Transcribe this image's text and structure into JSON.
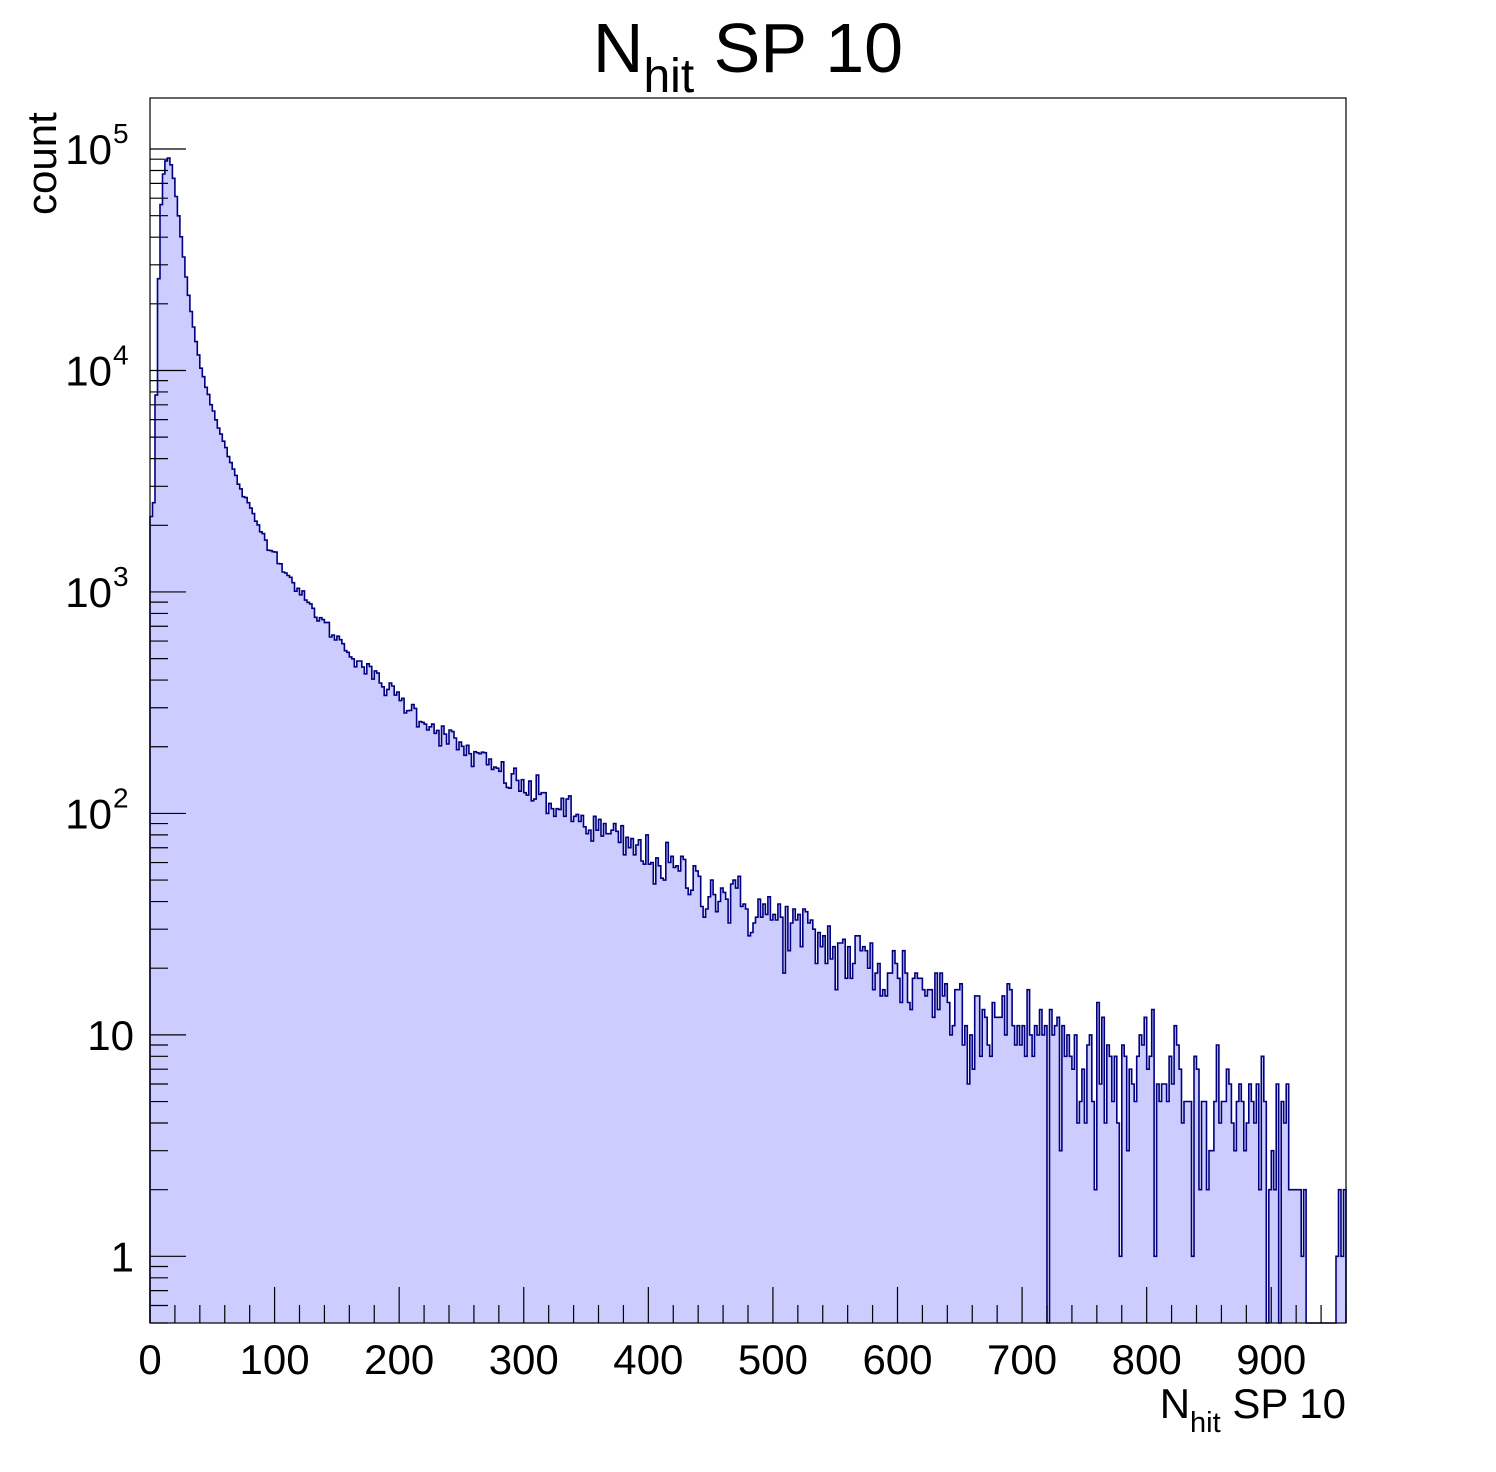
{
  "chart_data": {
    "type": "histogram",
    "title": {
      "main": "N",
      "sub": "hit",
      "rest": " SP 10"
    },
    "xlabel": {
      "main": "N",
      "sub": "hit",
      "rest": " SP 10"
    },
    "ylabel": "count",
    "xlim": [
      0,
      960
    ],
    "ylim": [
      0.5,
      170000
    ],
    "y_scale": "log",
    "bin_width": 2,
    "x_ticks": [
      "0",
      "100",
      "200",
      "300",
      "400",
      "500",
      "600",
      "700",
      "800",
      "900"
    ],
    "x_tick_values": [
      0,
      100,
      200,
      300,
      400,
      500,
      600,
      700,
      800,
      900
    ],
    "y_ticks": [
      {
        "value": 1,
        "base": "1",
        "exp": ""
      },
      {
        "value": 10,
        "base": "10",
        "exp": ""
      },
      {
        "value": 100,
        "base": "10",
        "exp": "2"
      },
      {
        "value": 1000,
        "base": "10",
        "exp": "3"
      },
      {
        "value": 10000,
        "base": "10",
        "exp": "4"
      },
      {
        "value": 100000,
        "base": "10",
        "exp": "5"
      }
    ],
    "fill_color": "#ccccff",
    "line_color": "#000080",
    "series": [
      {
        "x": [
          0,
          2,
          4,
          6,
          8,
          10,
          12,
          14,
          16,
          18,
          20,
          22,
          24,
          26,
          28,
          30,
          32,
          34,
          36,
          38,
          40,
          45,
          50,
          55,
          60,
          65,
          70,
          75,
          80,
          85,
          90,
          95,
          100,
          110,
          120,
          130,
          140,
          150,
          160,
          170,
          180,
          190,
          200,
          210,
          220,
          230,
          240,
          250,
          260,
          270,
          280,
          290,
          300,
          320,
          340,
          360,
          380,
          400,
          420,
          440,
          460,
          480,
          500,
          520,
          540,
          560,
          580,
          600,
          620,
          640,
          660,
          680,
          700,
          720,
          740,
          760,
          780,
          800,
          820,
          840,
          860,
          880,
          900,
          910,
          920,
          930,
          940,
          950,
          958
        ],
        "values": [
          3000,
          1600,
          4000,
          15000,
          45000,
          70000,
          85000,
          92000,
          90000,
          80000,
          68000,
          55000,
          45000,
          36000,
          29000,
          24000,
          20000,
          17000,
          14500,
          12500,
          11000,
          8500,
          6800,
          5600,
          4600,
          3800,
          3200,
          2750,
          2400,
          2100,
          1850,
          1650,
          1500,
          1220,
          1000,
          840,
          720,
          620,
          540,
          470,
          415,
          370,
          330,
          295,
          265,
          240,
          218,
          198,
          182,
          168,
          155,
          142,
          132,
          113,
          97,
          84,
          73,
          64,
          56,
          49,
          43,
          38,
          34,
          30,
          26,
          23,
          21,
          19,
          17,
          15,
          13.5,
          12,
          11,
          9.5,
          8.5,
          7.5,
          7,
          6.5,
          6,
          5.5,
          5,
          4.5,
          3.5,
          2.5,
          1.5,
          0.8,
          0.7,
          0.6,
          1
        ]
      }
    ]
  }
}
